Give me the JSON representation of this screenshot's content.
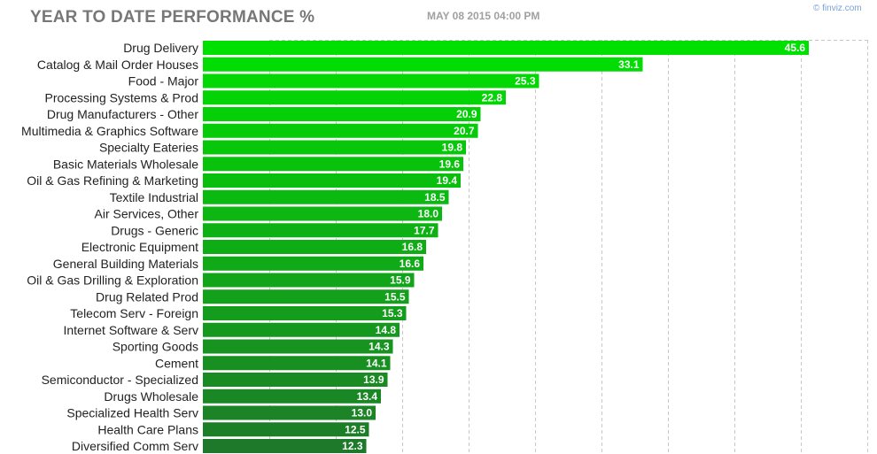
{
  "header": {
    "title": "YEAR TO DATE PERFORMANCE %",
    "date": "MAY 08 2015 04:00 PM",
    "brand": "© finviz.com"
  },
  "chart_data": {
    "type": "bar",
    "orientation": "horizontal",
    "title": "YEAR TO DATE PERFORMANCE %",
    "xlim": [
      0,
      50
    ],
    "grid": true,
    "categories": [
      "Drug Delivery",
      "Catalog & Mail Order Houses",
      "Food - Major",
      "Processing Systems & Prod",
      "Drug Manufacturers - Other",
      "Multimedia & Graphics Software",
      "Specialty Eateries",
      "Basic Materials Wholesale",
      "Oil & Gas Refining & Marketing",
      "Textile Industrial",
      "Air Services, Other",
      "Drugs - Generic",
      "Electronic Equipment",
      "General Building Materials",
      "Oil & Gas Drilling & Exploration",
      "Drug Related Prod",
      "Telecom Serv - Foreign",
      "Internet Software & Serv",
      "Sporting Goods",
      "Cement",
      "Semiconductor - Specialized",
      "Drugs Wholesale",
      "Specialized Health Serv",
      "Health Care Plans",
      "Diversified Comm Serv"
    ],
    "values": [
      45.6,
      33.1,
      25.3,
      22.8,
      20.9,
      20.7,
      19.8,
      19.6,
      19.4,
      18.5,
      18.0,
      17.7,
      16.8,
      16.6,
      15.9,
      15.5,
      15.3,
      14.8,
      14.3,
      14.1,
      13.9,
      13.4,
      13.0,
      12.5,
      12.3
    ],
    "value_labels": [
      "45.6",
      "33.1",
      "25.3",
      "22.8",
      "20.9",
      "20.7",
      "19.8",
      "19.6",
      "19.4",
      "18.5",
      "18.0",
      "17.7",
      "16.8",
      "16.6",
      "15.9",
      "15.5",
      "15.3",
      "14.8",
      "14.3",
      "14.1",
      "13.9",
      "13.4",
      "13.0",
      "12.5",
      "12.3"
    ],
    "colors": {
      "bar_top": "#00e000",
      "bar_bottom": "#1e7a2a",
      "grid": "#c8c8c8"
    }
  }
}
